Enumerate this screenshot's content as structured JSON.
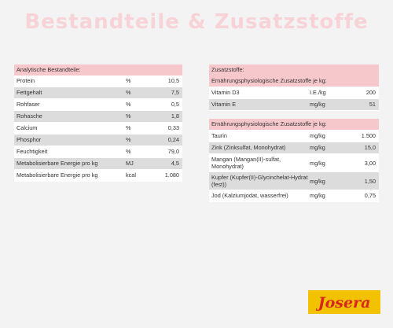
{
  "title_main": "Bestandteile",
  "title_amp": "&",
  "title_second": "Zusatzstoffe",
  "analytic": {
    "header": "Analytische Bestandteile:",
    "rows": [
      {
        "name": "Protein",
        "unit": "%",
        "value": "10,5"
      },
      {
        "name": "Fettgehalt",
        "unit": "%",
        "value": "7,5"
      },
      {
        "name": "Rohfaser",
        "unit": "%",
        "value": "0,5"
      },
      {
        "name": "Rohasche",
        "unit": "%",
        "value": "1,8"
      },
      {
        "name": "Calcium",
        "unit": "%",
        "value": "0,33"
      },
      {
        "name": "Phosphor",
        "unit": "%",
        "value": "0,24"
      },
      {
        "name": "Feuchtigkeit",
        "unit": "%",
        "value": "79,0"
      },
      {
        "name": "Metabolisierbare Energie pro kg",
        "unit": "MJ",
        "value": "4,5"
      },
      {
        "name": "Metabolisierbare Energie pro kg",
        "unit": "kcal",
        "value": "1.080"
      }
    ]
  },
  "additives": {
    "header": "Zusatzstoffe:",
    "subheader1": "Ernährungsphysiologische Zusatzstoffe je kg:",
    "rows1": [
      {
        "name": "Vitamin D3",
        "unit": "I.E./kg",
        "value": "200"
      },
      {
        "name": "Vitamin E",
        "unit": "mg/kg",
        "value": "51"
      }
    ],
    "subheader2": "Ernährungsphysiologische Zusatzstoffe je kg:",
    "rows2": [
      {
        "name": "Taurin",
        "unit": "mg/kg",
        "value": "1.500"
      },
      {
        "name": "Zink (Zinksulfat, Monohydrat)",
        "unit": "mg/kg",
        "value": "15,0"
      },
      {
        "name": "Mangan (Mangan(II)-sulfat, Monohydrat)",
        "unit": "mg/kg",
        "value": "3,00"
      },
      {
        "name": "Kupfer (Kupfer(II)-Glycinchelat-Hydrat (fest))",
        "unit": "mg/kg",
        "value": "1,50"
      },
      {
        "name": "Jod (Kalziumjodat, wasserfrei)",
        "unit": "mg/kg",
        "value": "0,75"
      }
    ]
  },
  "logo": {
    "text": "Josera",
    "bg": "#f2c200",
    "fg": "#d7261e"
  }
}
